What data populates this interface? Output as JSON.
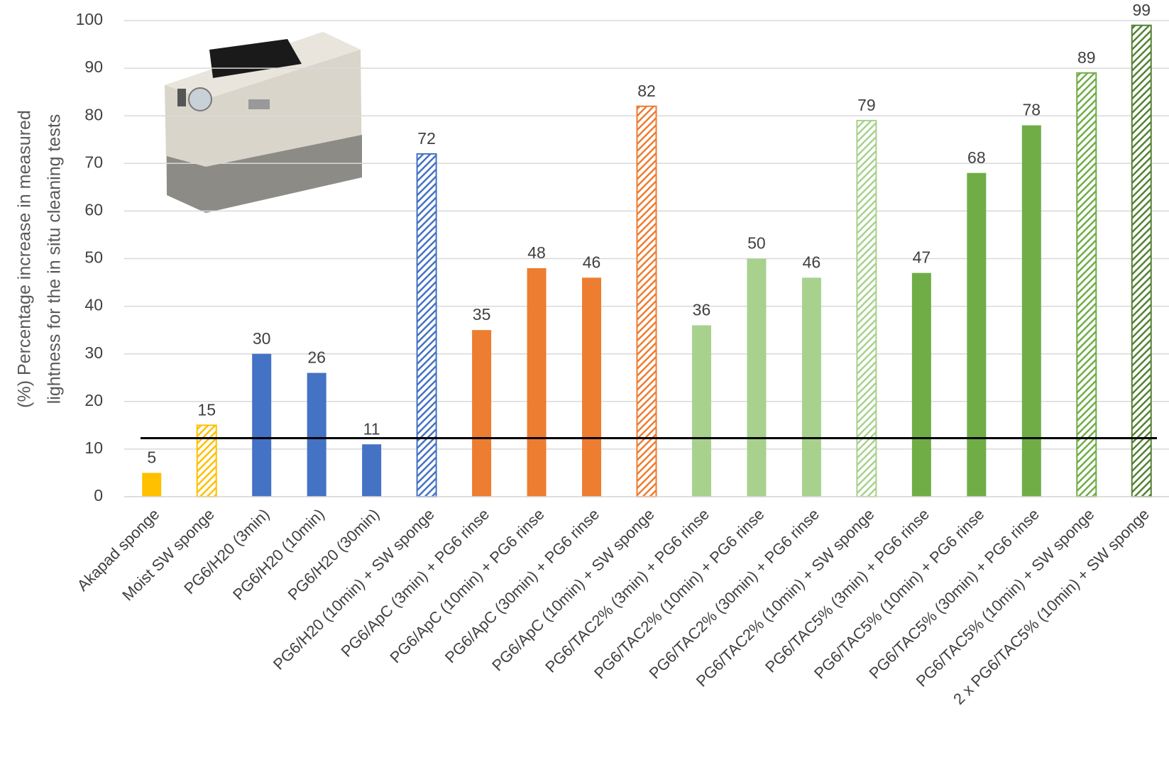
{
  "chart_data": {
    "type": "bar",
    "ylabel": [
      "(%) Percentage increase in measured",
      "lightness for the in situ cleaning tests"
    ],
    "categories": [
      "Akapad sponge",
      "Moist SW sponge",
      "PG6/H20 (3min)",
      "PG6/H20 (10min)",
      "PG6/H20 (30min)",
      "PG6/H20 (10min) + SW sponge",
      "PG6/ApC (3min) + PG6 rinse",
      "PG6/ApC (10min) + PG6 rinse",
      "PG6/ApC (30min) + PG6 rinse",
      "PG6/ApC (10min) + SW sponge",
      "PG6/TAC2% (3min) + PG6 rinse",
      "PG6/TAC2% (10min) + PG6 rinse",
      "PG6/TAC2% (30min) + PG6 rinse",
      "PG6/TAC2% (10min) + SW sponge",
      "PG6/TAC5% (3min) + PG6 rinse",
      "PG6/TAC5% (10min) + PG6 rinse",
      "PG6/TAC5% (30min) + PG6 rinse",
      "PG6/TAC5% (10min) + SW sponge",
      "2 x PG6/TAC5% (10min) + SW sponge"
    ],
    "values": [
      5,
      15,
      30,
      26,
      11,
      72,
      35,
      48,
      46,
      82,
      36,
      50,
      46,
      79,
      47,
      68,
      78,
      89,
      99
    ],
    "colors": [
      "#ffc000",
      "#ffc000",
      "#4472c4",
      "#4472c4",
      "#4472c4",
      "#4472c4",
      "#ed7d31",
      "#ed7d31",
      "#ed7d31",
      "#ed7d31",
      "#a9d18e",
      "#a9d18e",
      "#a9d18e",
      "#a9d18e",
      "#70ad47",
      "#70ad47",
      "#70ad47",
      "#70ad47",
      "#548235"
    ],
    "hatched": [
      false,
      true,
      false,
      false,
      false,
      true,
      false,
      false,
      false,
      true,
      false,
      false,
      false,
      true,
      false,
      false,
      false,
      true,
      true
    ],
    "reference_line": 12.3,
    "ylim": [
      0,
      100
    ],
    "yticks": [
      0,
      10,
      20,
      30,
      40,
      50,
      60,
      70,
      80,
      90,
      100
    ],
    "grid": true
  }
}
